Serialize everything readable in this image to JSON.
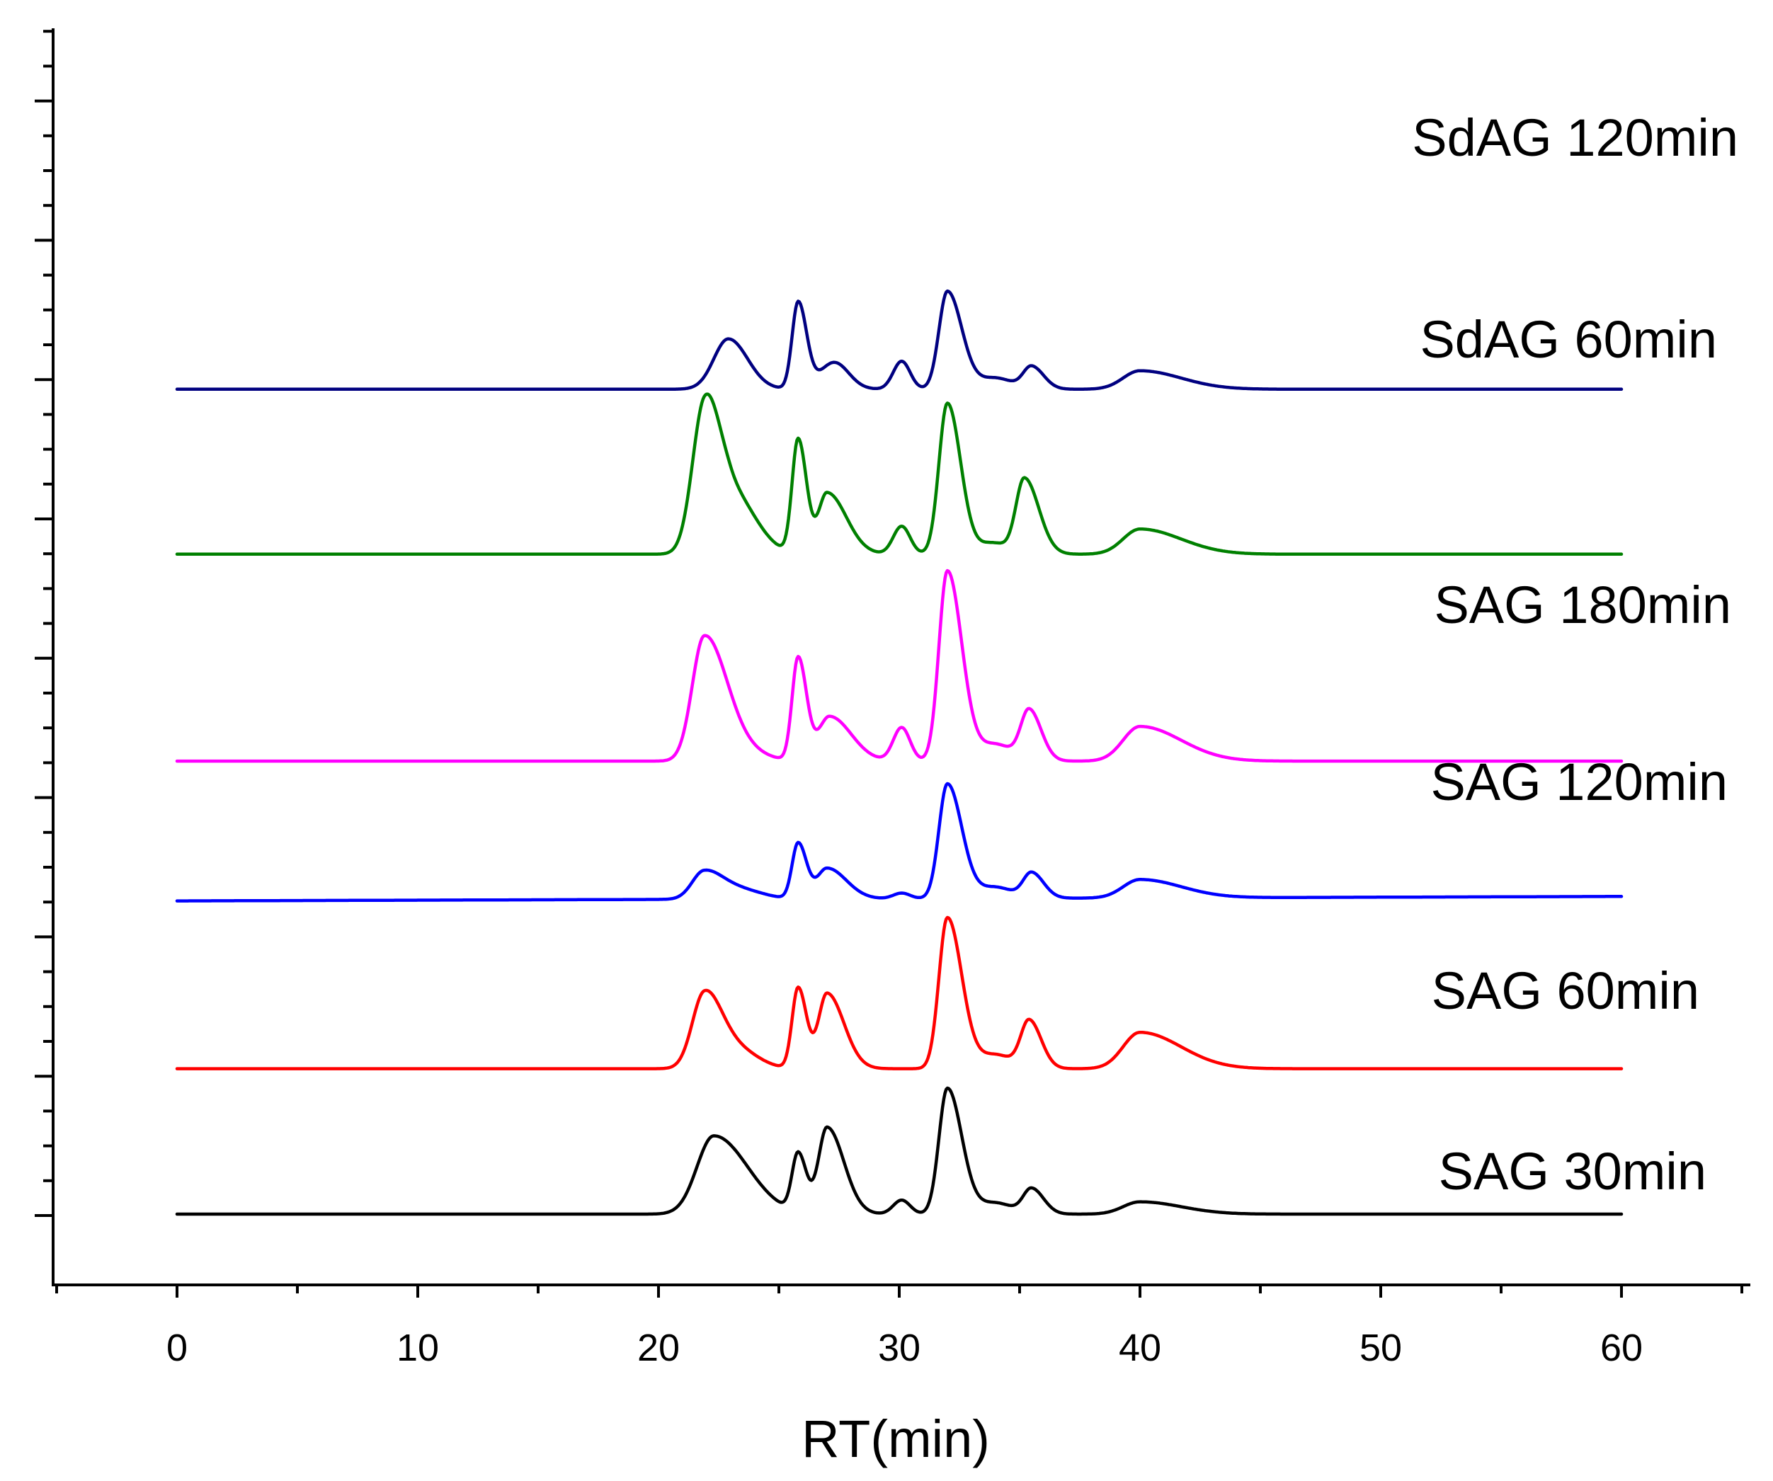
{
  "chart_data": {
    "type": "line",
    "title": "",
    "xlabel": "RT(min)",
    "ylabel": "",
    "xlim": [
      -5,
      65
    ],
    "x_ticks": [
      0,
      10,
      20,
      30,
      40,
      50,
      60
    ],
    "x_tick_labels": [
      "0",
      "10",
      "20",
      "30",
      "40",
      "50",
      "60"
    ],
    "x_range": [
      0,
      60
    ],
    "y_axis_ticks_labeled": false,
    "grid": false,
    "series": [
      {
        "name": "SAG 30min",
        "color": "#000000",
        "baseline": 0,
        "baseline_end": 0,
        "peaks": [
          {
            "rt": 22.3,
            "height": 14.0,
            "wl": 0.7,
            "wr": 1.4
          },
          {
            "rt": 25.8,
            "height": 10.5,
            "wl": 0.25,
            "wr": 0.35
          },
          {
            "rt": 27.0,
            "height": 15.5,
            "wl": 0.35,
            "wr": 0.7
          },
          {
            "rt": 30.1,
            "height": 2.5,
            "wl": 0.35,
            "wr": 0.35
          },
          {
            "rt": 32.0,
            "height": 22.5,
            "wl": 0.35,
            "wr": 0.6
          },
          {
            "rt": 34.0,
            "height": 2.0,
            "wl": 0.7,
            "wr": 0.7
          },
          {
            "rt": 35.5,
            "height": 4.5,
            "wl": 0.35,
            "wr": 0.5
          },
          {
            "rt": 40.0,
            "height": 2.2,
            "wl": 0.7,
            "wr": 1.7
          }
        ]
      },
      {
        "name": "SAG 60min",
        "color": "#ff0000",
        "baseline": 26,
        "baseline_end": 26,
        "peaks": [
          {
            "rt": 21.9,
            "height": 13.0,
            "wl": 0.5,
            "wr": 0.7
          },
          {
            "rt": 23.2,
            "height": 3.5,
            "wl": 0.8,
            "wr": 0.9
          },
          {
            "rt": 25.8,
            "height": 14.5,
            "wl": 0.25,
            "wr": 0.35
          },
          {
            "rt": 27.0,
            "height": 13.5,
            "wl": 0.35,
            "wr": 0.7
          },
          {
            "rt": 32.0,
            "height": 27.0,
            "wl": 0.35,
            "wr": 0.6
          },
          {
            "rt": 34.0,
            "height": 2.5,
            "wl": 0.7,
            "wr": 0.7
          },
          {
            "rt": 35.4,
            "height": 8.5,
            "wl": 0.35,
            "wr": 0.5
          },
          {
            "rt": 40.0,
            "height": 6.5,
            "wl": 0.7,
            "wr": 1.7
          }
        ]
      },
      {
        "name": "SAG 120min",
        "color": "#0000ff",
        "baseline": 56,
        "baseline_end": 56.8,
        "peaks": [
          {
            "rt": 21.9,
            "height": 5.0,
            "wl": 0.5,
            "wr": 0.8
          },
          {
            "rt": 23.5,
            "height": 1.5,
            "wl": 0.8,
            "wr": 0.9
          },
          {
            "rt": 25.8,
            "height": 10.0,
            "wl": 0.25,
            "wr": 0.35
          },
          {
            "rt": 27.0,
            "height": 5.5,
            "wl": 0.4,
            "wr": 0.8
          },
          {
            "rt": 30.1,
            "height": 1.0,
            "wl": 0.35,
            "wr": 0.35
          },
          {
            "rt": 32.0,
            "height": 20.5,
            "wl": 0.35,
            "wr": 0.6
          },
          {
            "rt": 34.0,
            "height": 2.0,
            "wl": 0.7,
            "wr": 0.7
          },
          {
            "rt": 35.5,
            "height": 4.5,
            "wl": 0.35,
            "wr": 0.5
          },
          {
            "rt": 40.0,
            "height": 3.3,
            "wl": 0.7,
            "wr": 1.7
          }
        ]
      },
      {
        "name": "SAG 180min",
        "color": "#ff00ff",
        "baseline": 81,
        "baseline_end": 81,
        "peaks": [
          {
            "rt": 21.9,
            "height": 22.0,
            "wl": 0.5,
            "wr": 0.9
          },
          {
            "rt": 23.3,
            "height": 2.0,
            "wl": 0.8,
            "wr": 1.0
          },
          {
            "rt": 25.8,
            "height": 18.5,
            "wl": 0.25,
            "wr": 0.35
          },
          {
            "rt": 27.1,
            "height": 8.0,
            "wl": 0.45,
            "wr": 0.9
          },
          {
            "rt": 30.1,
            "height": 6.0,
            "wl": 0.35,
            "wr": 0.35
          },
          {
            "rt": 32.0,
            "height": 34.0,
            "wl": 0.35,
            "wr": 0.6
          },
          {
            "rt": 34.0,
            "height": 3.0,
            "wl": 0.7,
            "wr": 0.7
          },
          {
            "rt": 35.4,
            "height": 9.0,
            "wl": 0.35,
            "wr": 0.5
          },
          {
            "rt": 40.0,
            "height": 6.2,
            "wl": 0.7,
            "wr": 1.7
          }
        ]
      },
      {
        "name": "SdAG 60min",
        "color": "#008000",
        "baseline": 118,
        "baseline_end": 118,
        "peaks": [
          {
            "rt": 21.9,
            "height": 25.0,
            "wl": 0.5,
            "wr": 0.6
          },
          {
            "rt": 23.0,
            "height": 11.0,
            "wl": 0.7,
            "wr": 1.0
          },
          {
            "rt": 25.8,
            "height": 20.5,
            "wl": 0.25,
            "wr": 0.35
          },
          {
            "rt": 27.0,
            "height": 11.0,
            "wl": 0.35,
            "wr": 0.8
          },
          {
            "rt": 30.1,
            "height": 5.0,
            "wl": 0.35,
            "wr": 0.35
          },
          {
            "rt": 32.0,
            "height": 27.0,
            "wl": 0.35,
            "wr": 0.55
          },
          {
            "rt": 33.9,
            "height": 2.0,
            "wl": 0.6,
            "wr": 0.6
          },
          {
            "rt": 35.2,
            "height": 13.5,
            "wl": 0.35,
            "wr": 0.6
          },
          {
            "rt": 40.0,
            "height": 4.5,
            "wl": 0.7,
            "wr": 1.7
          }
        ]
      },
      {
        "name": "SdAG 120min",
        "color": "#000080",
        "baseline": 147.5,
        "baseline_end": 147.5,
        "peaks": [
          {
            "rt": 22.9,
            "height": 9.0,
            "wl": 0.6,
            "wr": 0.8
          },
          {
            "rt": 25.8,
            "height": 15.5,
            "wl": 0.25,
            "wr": 0.35
          },
          {
            "rt": 27.3,
            "height": 4.8,
            "wl": 0.6,
            "wr": 0.6
          },
          {
            "rt": 30.1,
            "height": 5.0,
            "wl": 0.35,
            "wr": 0.35
          },
          {
            "rt": 32.0,
            "height": 17.5,
            "wl": 0.35,
            "wr": 0.6
          },
          {
            "rt": 34.0,
            "height": 2.0,
            "wl": 0.7,
            "wr": 0.7
          },
          {
            "rt": 35.5,
            "height": 4.0,
            "wl": 0.35,
            "wr": 0.5
          },
          {
            "rt": 40.0,
            "height": 3.3,
            "wl": 0.7,
            "wr": 1.7
          }
        ]
      }
    ],
    "legend": "inline labels right of each trace"
  }
}
